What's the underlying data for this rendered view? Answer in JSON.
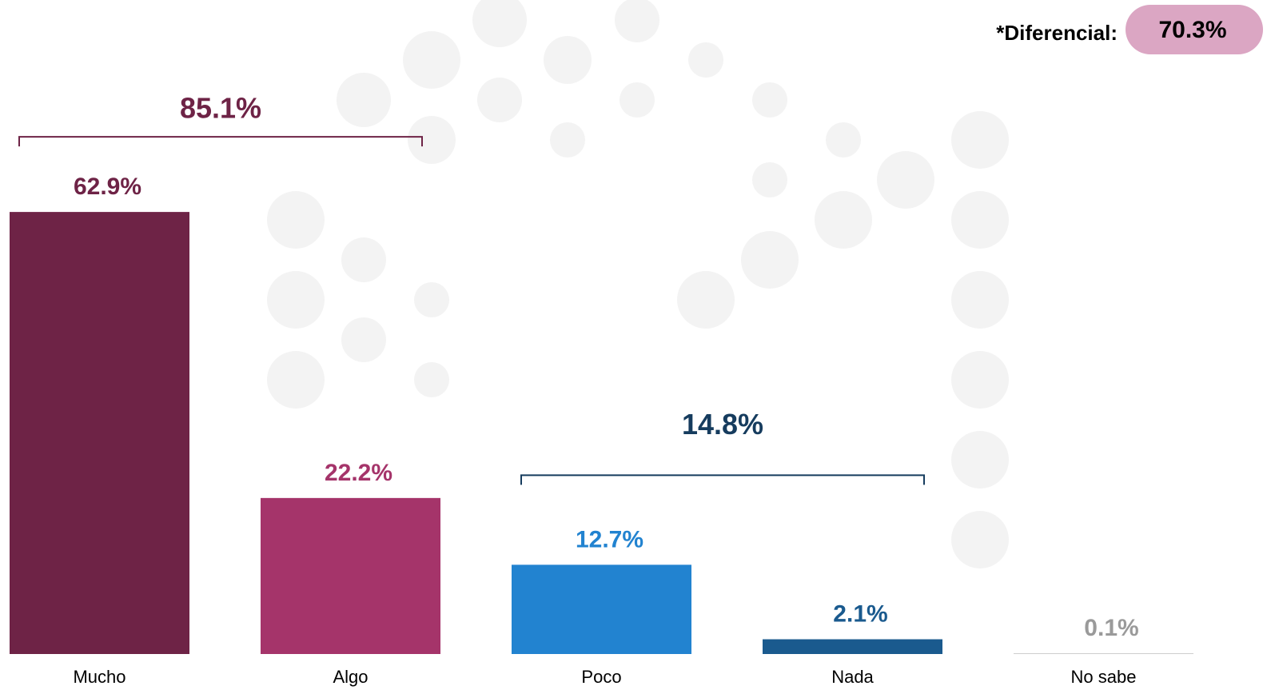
{
  "chart_data": {
    "type": "bar",
    "categories": [
      "Mucho",
      "Algo",
      "Poco",
      "Nada",
      "No sabe"
    ],
    "values": [
      62.9,
      22.2,
      12.7,
      2.1,
      0.1
    ],
    "value_labels": [
      "62.9%",
      "22.2%",
      "12.7%",
      "2.1%",
      "0.1%"
    ],
    "colors": [
      "#6e2346",
      "#a5346a",
      "#2283d0",
      "#1a5a8e",
      "#c8c8c8"
    ],
    "label_colors": [
      "#6e2346",
      "#a5346a",
      "#2283d0",
      "#1a5a8e",
      "#9a9a9a"
    ],
    "ylim": [
      0,
      70
    ],
    "groups": [
      {
        "members": [
          "Mucho",
          "Algo"
        ],
        "value": 85.1,
        "value_label": "85.1%",
        "color": "#6e2346"
      },
      {
        "members": [
          "Poco",
          "Nada"
        ],
        "value": 14.8,
        "value_label": "14.8%",
        "color": "#163c5e"
      }
    ],
    "differential": {
      "label": "*Diferencial:",
      "value": 70.3,
      "value_label": "70.3%",
      "color": "#dba6c3"
    }
  }
}
